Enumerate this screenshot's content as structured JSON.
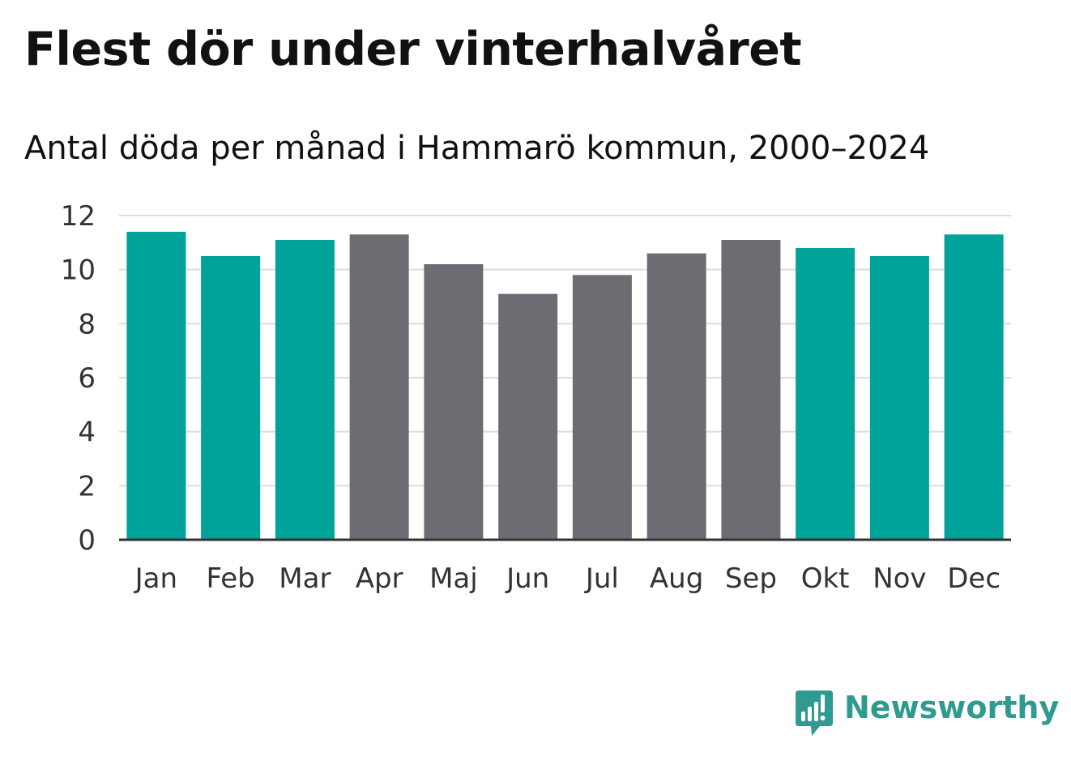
{
  "title": "Flest dör under vinterhalvåret",
  "subtitle": "Antal döda per månad i Hammarö kommun, 2000–2024",
  "colors": {
    "winter": "#00a39a",
    "summer": "#6d6c72",
    "grid": "#dddddd",
    "axis": "#333333",
    "brand": "#2f9a8f"
  },
  "brand": {
    "name": "Newsworthy",
    "icon": "newsworthy-logo-icon"
  },
  "chart_data": {
    "type": "bar",
    "title": "Flest dör under vinterhalvåret",
    "subtitle": "Antal döda per månad i Hammarö kommun, 2000–2024",
    "xlabel": "",
    "ylabel": "",
    "ylim": [
      0,
      12
    ],
    "yticks": [
      0,
      2,
      4,
      6,
      8,
      10,
      12
    ],
    "grid": true,
    "categories": [
      "Jan",
      "Feb",
      "Mar",
      "Apr",
      "Maj",
      "Jun",
      "Jul",
      "Aug",
      "Sep",
      "Okt",
      "Nov",
      "Dec"
    ],
    "values": [
      11.4,
      10.5,
      11.1,
      11.3,
      10.2,
      9.1,
      9.8,
      10.6,
      11.1,
      10.8,
      10.5,
      11.3
    ],
    "highlight": [
      "winter",
      "winter",
      "winter",
      "summer",
      "summer",
      "summer",
      "summer",
      "summer",
      "summer",
      "winter",
      "winter",
      "winter"
    ]
  }
}
